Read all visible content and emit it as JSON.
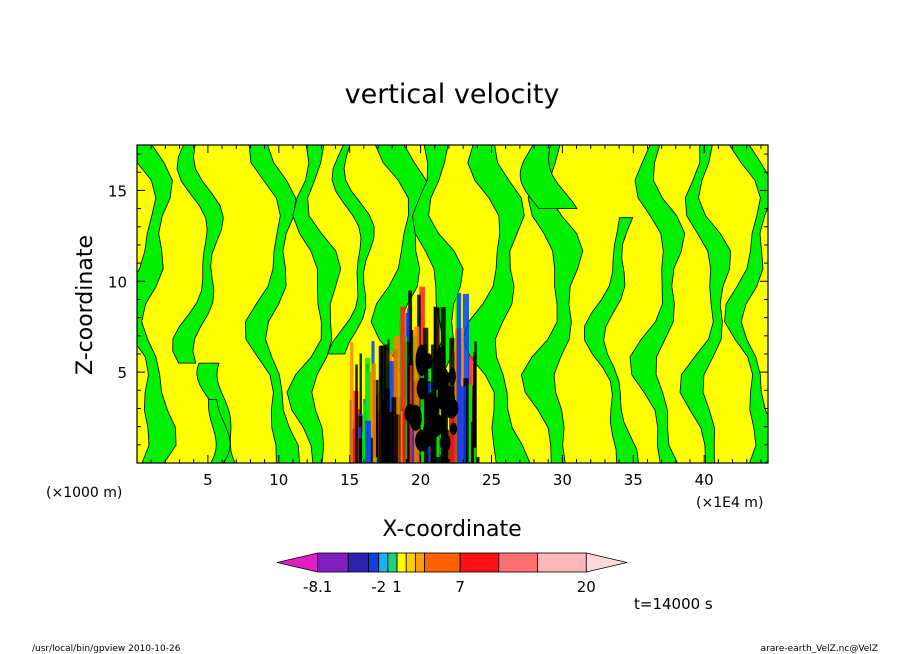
{
  "chart_data": {
    "type": "heatmap",
    "title": "vertical velocity",
    "xlabel": "X-coordinate",
    "ylabel": "Z-coordinate",
    "x_unit_left": "(×1000 m)",
    "x_unit_right": "(×1E4 m)",
    "xlim": [
      0,
      44.5
    ],
    "ylim": [
      0,
      17.5
    ],
    "x_ticks": [
      5,
      10,
      15,
      20,
      25,
      30,
      35,
      40
    ],
    "y_ticks": [
      5,
      10,
      15
    ],
    "time_label": "t=14000 s",
    "footer_left": "/usr/local/bin/gpview  2010-10-26",
    "footer_right": "arare-earth_VelZ.nc@VelZ",
    "colorbar": {
      "levels": [
        "-8.1",
        "-2",
        "1",
        "7",
        "20"
      ],
      "colors": [
        "#e020c0",
        "#8020c0",
        "#3020b0",
        "#1040e0",
        "#20b0f0",
        "#20d080",
        "#ffff00",
        "#ffd000",
        "#ffa000",
        "#ff6000",
        "#ff1010",
        "#ff7070",
        "#ffb8b8",
        "#ffd8d8"
      ]
    },
    "colors": {
      "yellow": "#ffff00",
      "green": "#00f000",
      "dark": "#000000",
      "orange": "#ff8000",
      "red": "#ff2020",
      "blue": "#0040ff"
    }
  }
}
